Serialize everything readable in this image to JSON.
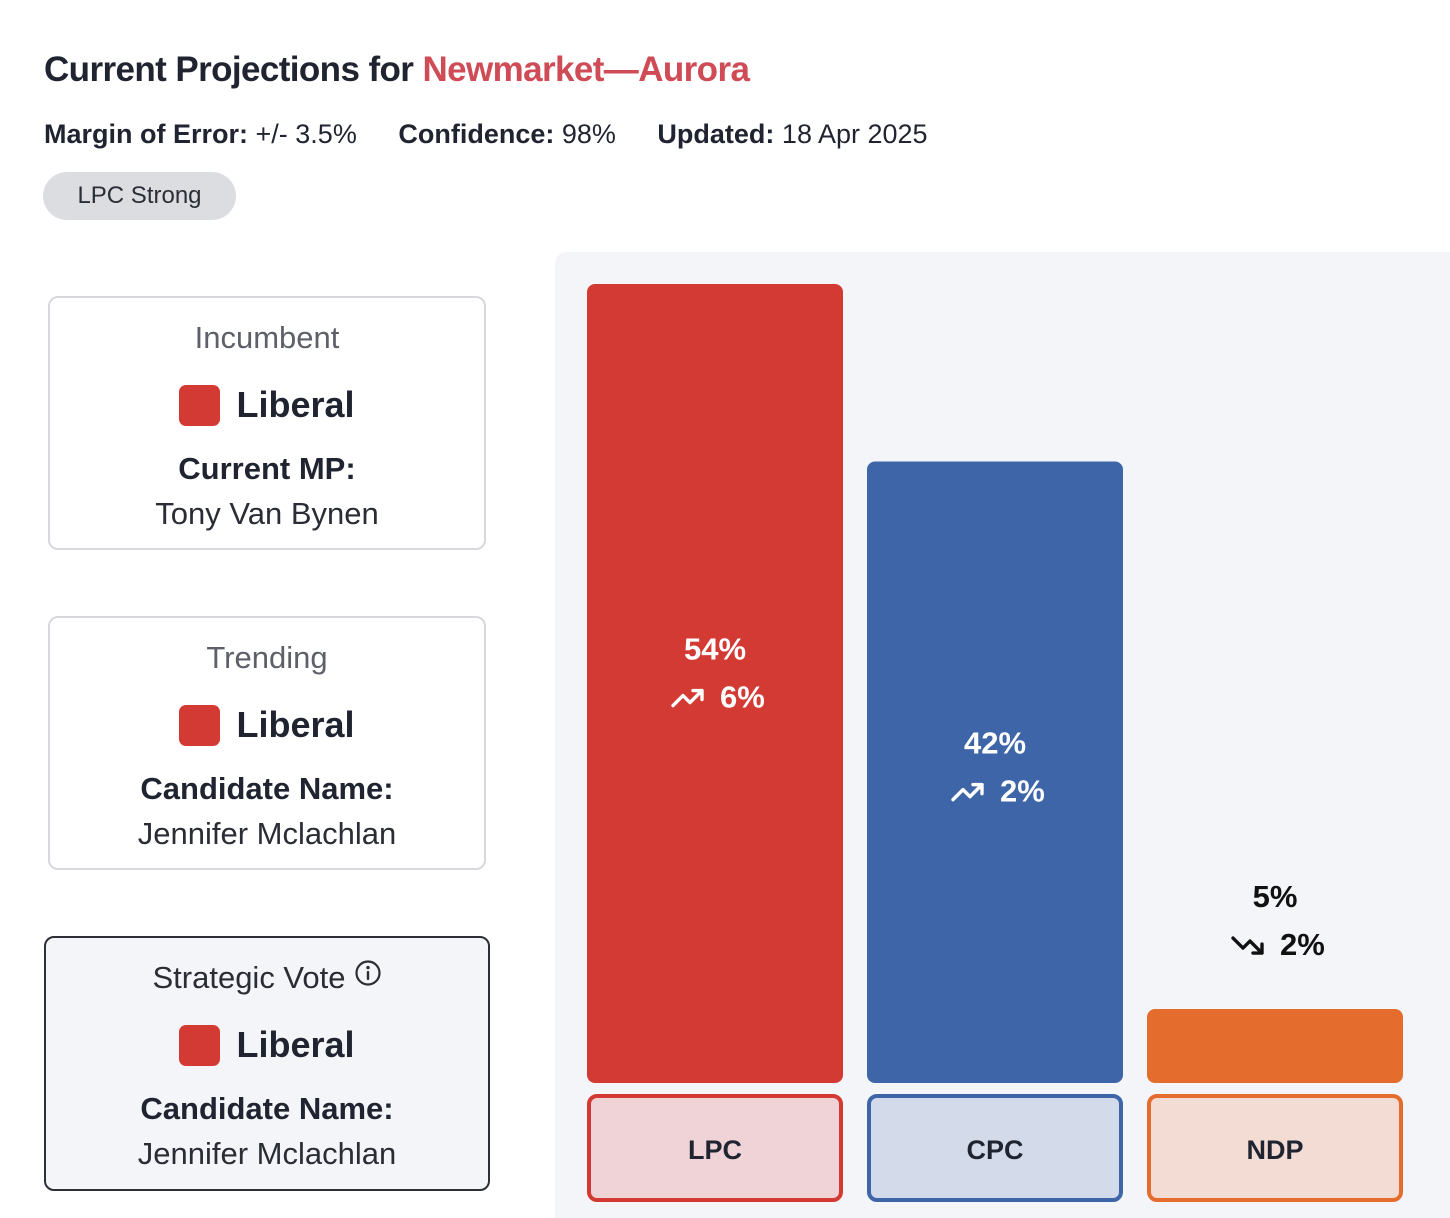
{
  "header": {
    "title_prefix": "Current Projections for ",
    "riding": "Newmarket—Aurora",
    "margin_label": "Margin of Error:",
    "margin_value": " +/- 3.5%",
    "confidence_label": "Confidence:",
    "confidence_value": " 98%",
    "updated_label": "Updated:",
    "updated_value": " 18 Apr 2025",
    "status_pill": "LPC Strong"
  },
  "cards": {
    "incumbent": {
      "label": "Incumbent",
      "party": "Liberal",
      "party_color": "#d33a33",
      "role": "Current MP:",
      "name": "Tony Van Bynen"
    },
    "trending": {
      "label": "Trending",
      "party": "Liberal",
      "party_color": "#d33a33",
      "role": "Candidate Name:",
      "name": "Jennifer Mclachlan"
    },
    "strategic": {
      "label": "Strategic Vote",
      "party": "Liberal",
      "party_color": "#d33a33",
      "role": "Candidate Name:",
      "name": "Jennifer Mclachlan",
      "icon": "info-icon"
    }
  },
  "chart_data": {
    "type": "bar",
    "categories": [
      "LPC",
      "CPC",
      "NDP"
    ],
    "values": [
      54,
      42,
      5
    ],
    "value_labels": [
      "54%",
      "42%",
      "5%"
    ],
    "changes": [
      {
        "direction": "up",
        "label": "6%"
      },
      {
        "direction": "up",
        "label": "2%"
      },
      {
        "direction": "down",
        "label": "2%"
      }
    ],
    "colors": [
      "#d33a33",
      "#3d65a8",
      "#e46d2d"
    ],
    "label_fills": [
      "#efd3d7",
      "#d3dbea",
      "#f3dcd3"
    ],
    "ylim": [
      0,
      54
    ],
    "title": "",
    "xlabel": "",
    "ylabel": ""
  }
}
